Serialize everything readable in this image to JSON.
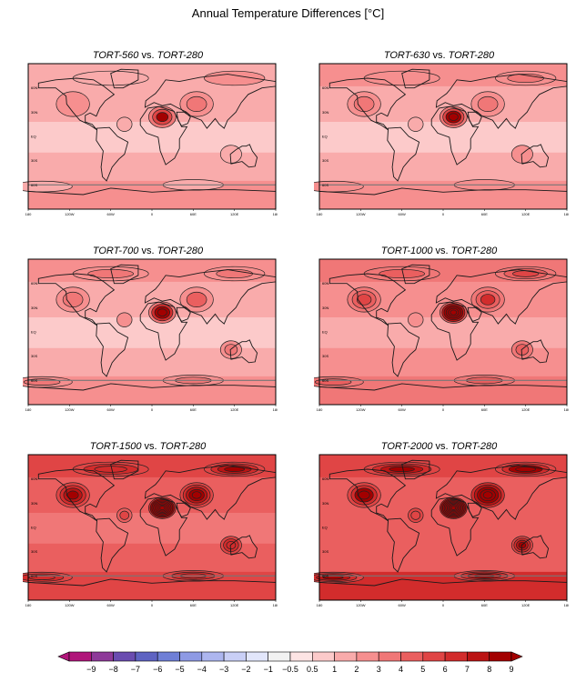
{
  "figure": {
    "title": "Annual Temperature Differences [°C]"
  },
  "panels": [
    {
      "id": "p560",
      "title_a": "TORT-560",
      "title_vs": " vs. ",
      "title_b": "TORT-280",
      "level": 2.0
    },
    {
      "id": "p630",
      "title_a": "TORT-630",
      "title_vs": " vs. ",
      "title_b": "TORT-280",
      "level": 2.2
    },
    {
      "id": "p700",
      "title_a": "TORT-700",
      "title_vs": " vs. ",
      "title_b": "TORT-280",
      "level": 2.6
    },
    {
      "id": "p1000",
      "title_a": "TORT-1000",
      "title_vs": " vs. ",
      "title_b": "TORT-280",
      "level": 3.4
    },
    {
      "id": "p1500",
      "title_a": "TORT-1500",
      "title_vs": " vs. ",
      "title_b": "TORT-280",
      "level": 5.2
    },
    {
      "id": "p2000",
      "title_a": "TORT-2000",
      "title_vs": " vs. ",
      "title_b": "TORT-280",
      "level": 5.8
    }
  ],
  "axes": {
    "lon_ticks": [
      "180",
      "120W",
      "60W",
      "0",
      "60E",
      "120E",
      "180"
    ],
    "lat_ticks": [
      "60N",
      "30N",
      "EQ",
      "30S",
      "60S"
    ]
  },
  "colorbar": {
    "labels": [
      "−9",
      "−8",
      "−7",
      "−6",
      "−5",
      "−4",
      "−3",
      "−2",
      "−1",
      "−0.5",
      "0.5",
      "1",
      "2",
      "3",
      "4",
      "5",
      "6",
      "7",
      "8",
      "9"
    ],
    "colors": [
      "#b0157a",
      "#8e3a99",
      "#6a4cb0",
      "#5e63c2",
      "#6f7fd6",
      "#8e9ae4",
      "#adb6ef",
      "#c9cff6",
      "#e2e6fb",
      "#f2f2f2",
      "#fde4e4",
      "#fccaca",
      "#f9abab",
      "#f68f8f",
      "#f07777",
      "#ea5f5f",
      "#e04545",
      "#d22c2c",
      "#bb1414",
      "#a30000"
    ]
  }
}
